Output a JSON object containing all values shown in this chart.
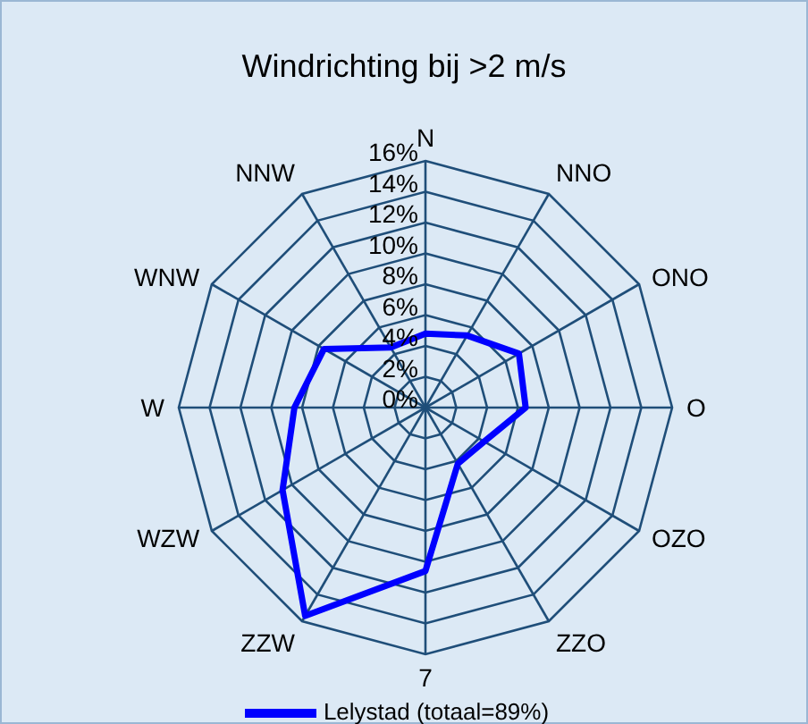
{
  "chart_data": {
    "type": "radar",
    "title": "Windrichting bij >2 m/s",
    "categories": [
      "N",
      "NNO",
      "ONO",
      "O",
      "OZO",
      "ZZO",
      "7",
      "ZZW",
      "WZW",
      "W",
      "WNW",
      "NNW"
    ],
    "series": [
      {
        "name": "Lelystad (totaal=89%)",
        "color": "#0000ff",
        "values": [
          4.8,
          5.4,
          7.0,
          6.5,
          4.4,
          4.2,
          10.6,
          15.6,
          10.7,
          8.5,
          7.6,
          4.5
        ]
      }
    ],
    "ylim": [
      0,
      16
    ],
    "yticks": [
      {
        "value": 0,
        "label": "0%"
      },
      {
        "value": 2,
        "label": "2%"
      },
      {
        "value": 4,
        "label": "4%"
      },
      {
        "value": 6,
        "label": "6%"
      },
      {
        "value": 8,
        "label": "8%"
      },
      {
        "value": 10,
        "label": "10%"
      },
      {
        "value": 12,
        "label": "12%"
      },
      {
        "value": 14,
        "label": "14%"
      },
      {
        "value": 16,
        "label": "16%"
      }
    ],
    "grid": true,
    "legend": "bottom",
    "marker": "none",
    "line_style": "solid"
  }
}
